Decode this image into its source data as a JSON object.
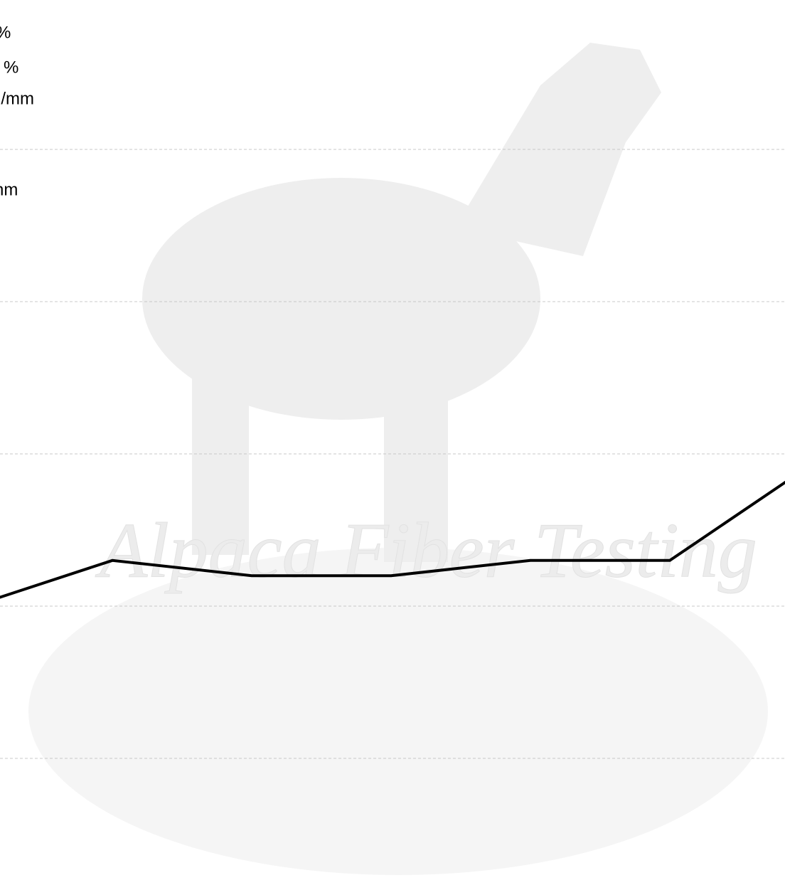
{
  "chart_data": {
    "type": "line",
    "annotations": [
      "%",
      "%",
      "g/mm",
      "nm"
    ],
    "watermark": "Alpaca Fiber Testing",
    "categories": [
      null,
      null,
      null,
      null,
      null,
      null,
      null
    ],
    "series": [
      {
        "color": "#000000",
        "values": [
          2.0,
          2.3,
          2.2,
          2.2,
          2.3,
          2.3,
          2.92
        ]
      }
    ],
    "ylim": [
      0,
      6
    ],
    "yticks": [
      1,
      2,
      3,
      4,
      5
    ],
    "grid": true
  }
}
